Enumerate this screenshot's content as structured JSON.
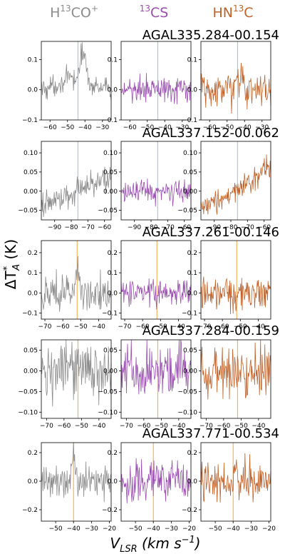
{
  "column_headers": [
    {
      "base": "H",
      "sup": "13",
      "rest": "CO",
      "sup2": "+",
      "color": "#8c8c8c"
    },
    {
      "base": "",
      "sup": "13",
      "rest": "CS",
      "sup2": "",
      "color": "#9a4fb0"
    },
    {
      "base": "HN",
      "sup": "13",
      "rest": "C",
      "sup2": "",
      "color": "#c0622a"
    }
  ],
  "ylabel": {
    "main": "ΔT",
    "sup": "*",
    "sub": "A",
    "unit": " (K)"
  },
  "xlabel": {
    "main": "V",
    "sub": "LSR",
    "unit": " (km s",
    "sup": "−1",
    "close": ")"
  },
  "colors": {
    "hco": "#8c8c8c",
    "cs": "#9a4fb0",
    "hnc": "#c0622a",
    "vline_blue": "#a6c8e6",
    "vline_orange": "#f5b25e"
  },
  "chart_data": [
    {
      "type": "line",
      "title": "AGAL335.284-00.154",
      "xlim": [
        -65,
        -25
      ],
      "ylim": [
        -0.1,
        0.16
      ],
      "xticks": [
        -60,
        -50,
        -40,
        -30
      ],
      "yticks": [
        -0.1,
        0.0,
        0.1
      ],
      "ytick_labels": [
        "−0.1",
        "0.0",
        "0.1"
      ],
      "vline": -44,
      "vline_color": "#a6c8e6",
      "series": [
        {
          "color": "#8c8c8c",
          "noise": 0.018,
          "slope": 0,
          "offset": 0.0,
          "peaks": [
            {
              "v": -47,
              "a": 0.035,
              "w": 8
            },
            {
              "v": -41,
              "a": 0.1,
              "w": 1.6
            }
          ]
        },
        {
          "color": "#9a4fb0",
          "noise": 0.02,
          "slope": 0,
          "offset": 0.0,
          "peaks": []
        },
        {
          "color": "#c0622a",
          "noise": 0.028,
          "slope": 0,
          "offset": 0.0,
          "peaks": [
            {
              "v": -42,
              "a": 0.05,
              "w": 1.0
            }
          ]
        }
      ]
    },
    {
      "type": "line",
      "title": "AGAL337.152-00.062",
      "xlim": [
        -98,
        -56
      ],
      "ylim": [
        -0.075,
        0.13
      ],
      "xticks": [
        -90,
        -80,
        -70,
        -60
      ],
      "yticks": [
        -0.05,
        0.0,
        0.05,
        0.1
      ],
      "ytick_labels": [
        "−0.05",
        "0.00",
        "0.05",
        "0.10"
      ],
      "vline": -76,
      "vline_color": "#a6c8e6",
      "series": [
        {
          "color": "#8c8c8c",
          "noise": 0.016,
          "slope": 0.0018,
          "offset": 0.0,
          "peaks": []
        },
        {
          "color": "#9a4fb0",
          "noise": 0.014,
          "slope": 0,
          "offset": 0.0,
          "peaks": []
        },
        {
          "color": "#c0622a",
          "noise": 0.015,
          "slope": 0.0022,
          "offset": 0.0,
          "peaks": [
            {
              "v": -60,
              "a": 0.04,
              "w": 1.5
            }
          ]
        }
      ]
    },
    {
      "type": "line",
      "title": "AGAL337.261-00.146",
      "xlim": [
        -72,
        -33
      ],
      "ylim": [
        -0.13,
        0.26
      ],
      "xticks": [
        -70,
        -60,
        -50,
        -40
      ],
      "yticks": [
        -0.1,
        0.0,
        0.1,
        0.2
      ],
      "ytick_labels": [
        "−0.1",
        "0.0",
        "0.1",
        "0.2"
      ],
      "vline": -52,
      "vline_color": "#f5b25e",
      "series": [
        {
          "color": "#8c8c8c",
          "noise": 0.045,
          "slope": 0,
          "offset": 0.0,
          "peaks": [
            {
              "v": -52,
              "a": 0.12,
              "w": 1.2
            }
          ]
        },
        {
          "color": "#9a4fb0",
          "noise": 0.035,
          "slope": 0,
          "offset": 0.0,
          "peaks": []
        },
        {
          "color": "#c0622a",
          "noise": 0.04,
          "slope": 0,
          "offset": 0.0,
          "peaks": []
        }
      ]
    },
    {
      "type": "line",
      "title": "AGAL337.284-00.159",
      "xlim": [
        -73,
        -33
      ],
      "ylim": [
        -0.115,
        0.075
      ],
      "xticks": [
        -70,
        -60,
        -50,
        -40
      ],
      "yticks": [
        -0.1,
        -0.05,
        0.0,
        0.05
      ],
      "ytick_labels": [
        "−0.10",
        "−0.05",
        "0.00",
        "0.05"
      ],
      "vline": -52,
      "vline_color": "#f5b25e",
      "series": [
        {
          "color": "#8c8c8c",
          "noise": 0.033,
          "slope": 0,
          "offset": 0.0,
          "peaks": []
        },
        {
          "color": "#9a4fb0",
          "noise": 0.034,
          "slope": 0,
          "offset": 0.0,
          "peaks": []
        },
        {
          "color": "#c0622a",
          "noise": 0.032,
          "slope": 0,
          "offset": 0.0,
          "peaks": []
        }
      ]
    },
    {
      "type": "line",
      "title": "AGAL337.771-00.534",
      "xlim": [
        -58,
        -19
      ],
      "ylim": [
        -0.28,
        0.27
      ],
      "xticks": [
        -50,
        -40,
        -30,
        -20
      ],
      "yticks": [
        -0.2,
        0.0,
        0.2
      ],
      "ytick_labels": [
        "−0.2",
        "0.0",
        "0.2"
      ],
      "vline": -40,
      "vline_color": "#f5b25e",
      "series": [
        {
          "color": "#8c8c8c",
          "noise": 0.06,
          "slope": 0,
          "offset": 0.0,
          "peaks": [
            {
              "v": -40,
              "a": 0.2,
              "w": 1.0
            }
          ]
        },
        {
          "color": "#9a4fb0",
          "noise": 0.07,
          "slope": 0,
          "offset": 0.0,
          "peaks": []
        },
        {
          "color": "#c0622a",
          "noise": 0.07,
          "slope": 0,
          "offset": 0.0,
          "peaks": []
        }
      ]
    }
  ]
}
